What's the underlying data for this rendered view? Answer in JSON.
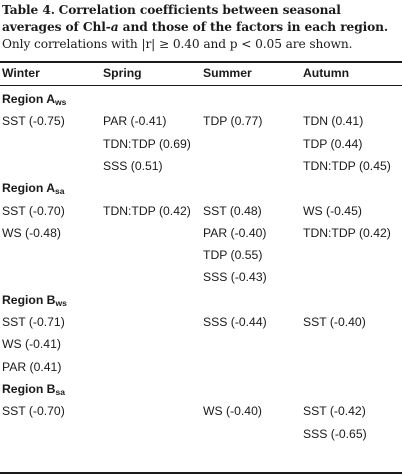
{
  "caption": {
    "label": "Table 4.",
    "title_part1": "Correlation coefficients between seasonal averages of Chl-",
    "title_italic": "a",
    "title_part2": " and those of the factors in each region.",
    "note": "Only correlations with |r| ≥ 0.40 and p < 0.05 are shown."
  },
  "columns": [
    "Winter",
    "Spring",
    "Summer",
    "Autumn"
  ],
  "regions": [
    {
      "name": "Region A",
      "sub": "ws",
      "rows": [
        [
          "SST (-0.75)",
          "PAR (-0.41)",
          "TDP (0.77)",
          "TDN (0.41)"
        ],
        [
          "",
          "TDN:TDP (0.69)",
          "",
          "TDP (0.44)"
        ],
        [
          "",
          "SSS (0.51)",
          "",
          "TDN:TDP (0.45)"
        ]
      ]
    },
    {
      "name": "Region A",
      "sub": "sa",
      "rows": [
        [
          "SST (-0.70)",
          "TDN:TDP (0.42)",
          "SST (0.48)",
          "WS (-0.45)"
        ],
        [
          "WS (-0.48)",
          "",
          "PAR (-0.40)",
          "TDN:TDP (0.42)"
        ],
        [
          "",
          "",
          "TDP (0.55)",
          ""
        ],
        [
          "",
          "",
          "SSS (-0.43)",
          ""
        ]
      ]
    },
    {
      "name": "Region B",
      "sub": "ws",
      "rows": [
        [
          "SST (-0.71)",
          "",
          "SSS (-0.44)",
          "SST (-0.40)"
        ],
        [
          "WS (-0.41)",
          "",
          "",
          ""
        ],
        [
          "PAR (0.41)",
          "",
          "",
          ""
        ]
      ]
    },
    {
      "name": "Region B",
      "sub": "sa",
      "rows": [
        [
          "SST (-0.70)",
          "",
          "WS (-0.40)",
          "SST (-0.42)"
        ],
        [
          "",
          "",
          "",
          "SSS (-0.65)"
        ]
      ]
    }
  ]
}
